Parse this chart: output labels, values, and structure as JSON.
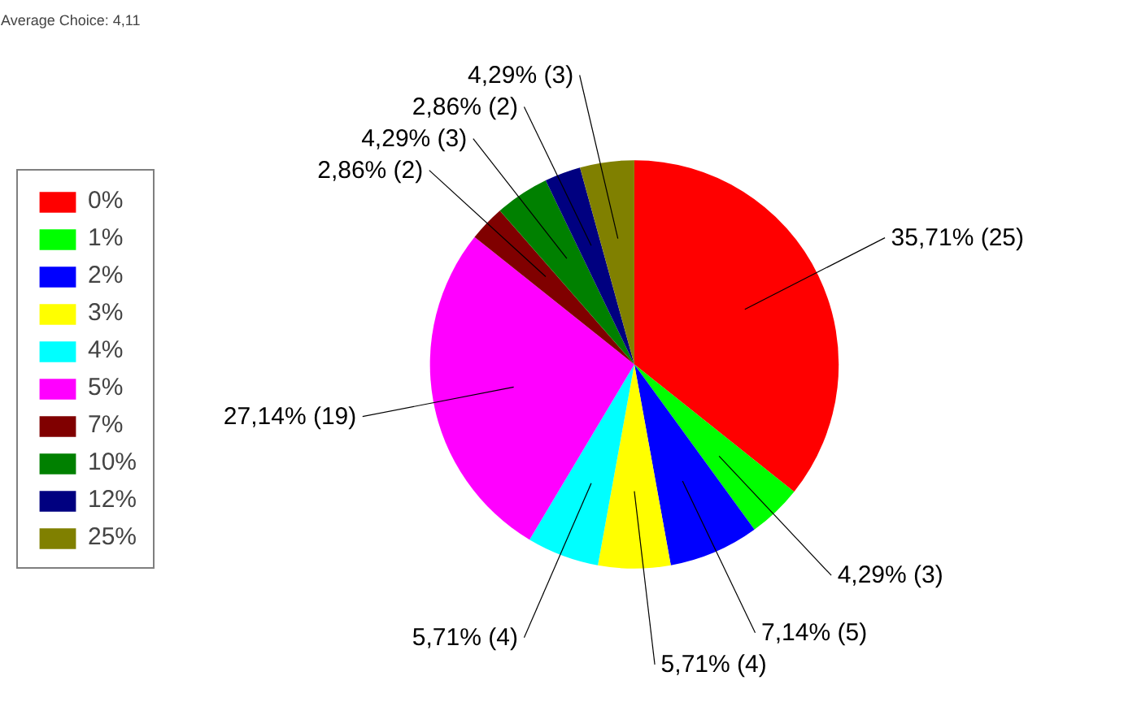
{
  "chart_data": {
    "type": "pie",
    "title": "Average Choice: 4,11",
    "categories": [
      "0%",
      "1%",
      "2%",
      "3%",
      "4%",
      "5%",
      "7%",
      "10%",
      "12%",
      "25%"
    ],
    "values": [
      25,
      3,
      5,
      4,
      4,
      19,
      2,
      3,
      2,
      3
    ],
    "value_labels": [
      "35,71% (25)",
      "4,29% (3)",
      "7,14% (5)",
      "5,71% (4)",
      "5,71% (4)",
      "27,14% (19)",
      "2,86% (2)",
      "4,29% (3)",
      "2,86% (2)",
      "4,29% (3)"
    ],
    "colors": [
      "#ff0000",
      "#00ff00",
      "#0000ff",
      "#ffff00",
      "#00ffff",
      "#ff00ff",
      "#800000",
      "#008000",
      "#000080",
      "#808000"
    ],
    "legend": "left"
  }
}
